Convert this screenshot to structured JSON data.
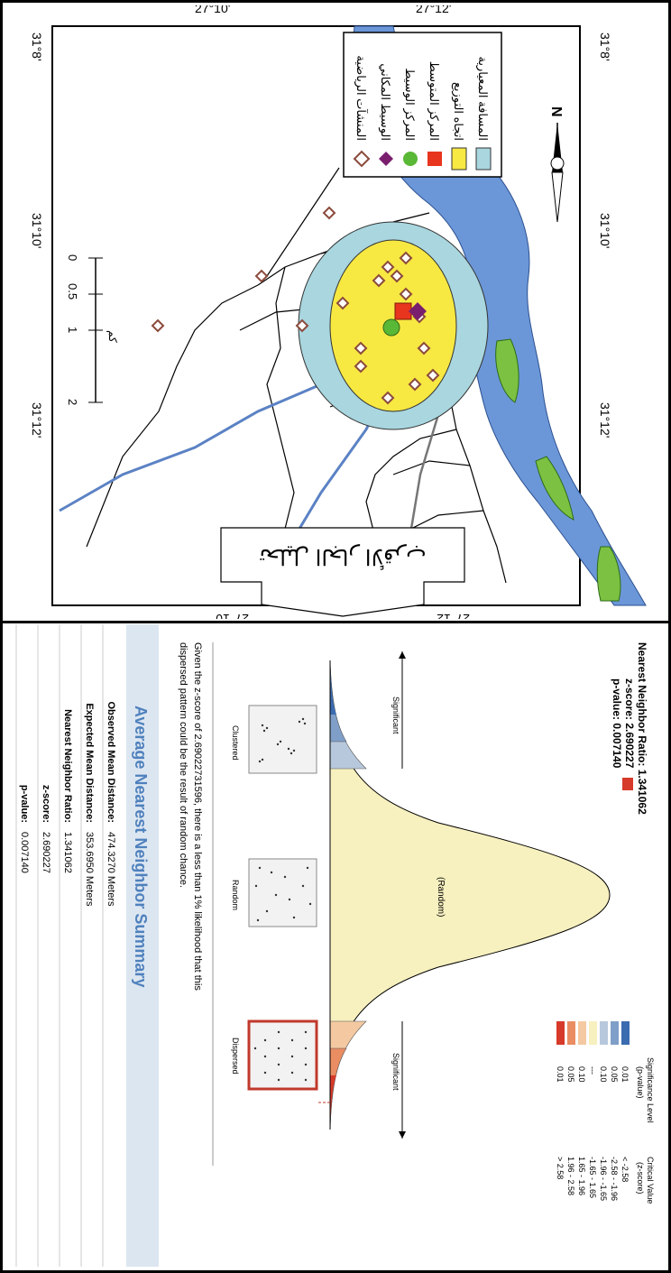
{
  "map": {
    "coords": {
      "lon": [
        "31°8'",
        "31°10'",
        "31°12'"
      ],
      "lat": [
        "27°12'",
        "27°10'"
      ]
    },
    "north": "N",
    "scale": {
      "ticks": [
        "0",
        "0.5",
        "1",
        "2"
      ],
      "unit": "كم"
    },
    "legend": [
      {
        "label": "المسافة المعيارية",
        "color": "#a9d6df",
        "icon": "rect-icon"
      },
      {
        "label": "اتجاه التوزيع",
        "color": "#f7e842",
        "icon": "rect-icon"
      },
      {
        "label": "المركز المتوسط",
        "color": "#e8351e",
        "icon": "square-icon"
      },
      {
        "label": "المركز الوسيط",
        "color": "#5ab837",
        "icon": "circle-icon"
      },
      {
        "label": "الوسيط المكاني",
        "color": "#7a1f6e",
        "icon": "diamond-icon"
      },
      {
        "label": "المنشآت الرياضية",
        "color": "#8b4a3c",
        "icon": "diamond-outline-icon"
      }
    ],
    "colors": {
      "river": "#6b97d9",
      "island": "#7cc142"
    }
  },
  "arrow_label": "تحليل الجار الأقرب",
  "stats": {
    "ratio_line": "Nearest Neighbor Ratio: 1.341062",
    "z_line": "z-score: 2.690227",
    "p_line": "p-value: 0.007140",
    "sig_header": [
      "Significance Level",
      "(p-value)"
    ],
    "crit_header": [
      "Critical Value",
      "(z-score)"
    ],
    "sig_rows": [
      {
        "p": "0.01",
        "z": "< -2.58",
        "color": "#3b6bb0"
      },
      {
        "p": "0.05",
        "z": "-2.58 - -1.96",
        "color": "#7f9fc8"
      },
      {
        "p": "0.10",
        "z": "-1.96 - -1.65",
        "color": "#b7c8dc"
      },
      {
        "p": "---",
        "z": "-1.65 - 1.65",
        "color": "#f7f0bf"
      },
      {
        "p": "0.10",
        "z": "1.65 - 1.96",
        "color": "#f4c9a1"
      },
      {
        "p": "0.05",
        "z": "1.96 - 2.58",
        "color": "#ea8d63"
      },
      {
        "p": "0.01",
        "z": "> 2.58",
        "color": "#d63a2a"
      }
    ],
    "curve_labels": {
      "left": "Significant",
      "center": "(Random)",
      "right": "Significant"
    },
    "patterns": [
      "Clustered",
      "Random",
      "Dispersed"
    ],
    "conclusion": [
      "Given the z-score of 2.69022731596, there is a less than 1% likelihood that this",
      "dispersed pattern could be the result of random chance."
    ],
    "summary_title": "Average Nearest Neighbor Summary",
    "summary_rows": [
      {
        "label": "Observed Mean Distance:",
        "value": "474.3270 Meters"
      },
      {
        "label": "Expected Mean Distance:",
        "value": "353.6950 Meters"
      },
      {
        "label": "Nearest Neighbor Ratio:",
        "value": "1.341062"
      },
      {
        "label": "z-score:",
        "value": "2.690227"
      },
      {
        "label": "p-value:",
        "value": "0.007140"
      }
    ]
  }
}
